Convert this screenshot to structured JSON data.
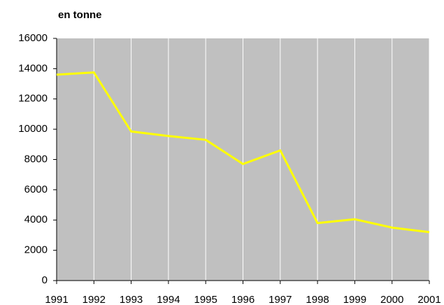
{
  "chart_data": {
    "type": "line",
    "title": "en tonne",
    "x": [
      1991,
      1992,
      1993,
      1994,
      1995,
      1996,
      1997,
      1998,
      1999,
      2000,
      2001
    ],
    "series": [
      {
        "color": "#ffff00",
        "values": [
          13600,
          13750,
          9850,
          9550,
          9300,
          7700,
          8600,
          3800,
          4050,
          3500,
          3200
        ]
      }
    ],
    "xlim": [
      1991,
      2001
    ],
    "xticks": [
      1991,
      1992,
      1993,
      1994,
      1995,
      1996,
      1997,
      1998,
      1999,
      2000,
      2001
    ],
    "ylim": [
      0,
      16000
    ],
    "yticks": [
      0,
      2000,
      4000,
      6000,
      8000,
      10000,
      12000,
      14000,
      16000
    ],
    "grid": true
  }
}
